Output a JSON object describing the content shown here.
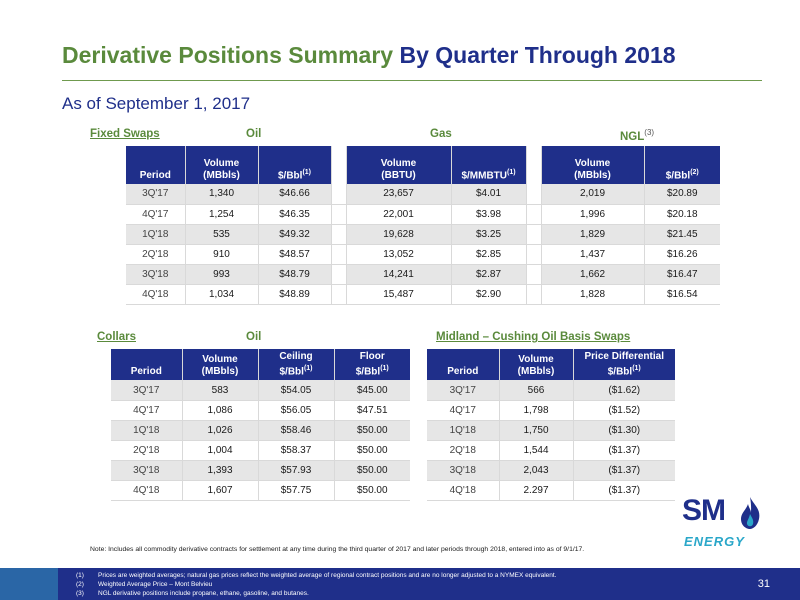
{
  "title": {
    "part1": "Derivative Positions Summary",
    "part2": " By Quarter Through 2018"
  },
  "subtitle": "As of September 1, 2017",
  "fixed_swaps": {
    "label": "Fixed Swaps",
    "oil_label": "Oil",
    "gas_label": "Gas",
    "ngl_label": "NGL",
    "ngl_sup": "(3)",
    "headers": {
      "period": "Period",
      "oil_volume": [
        "Volume",
        "(MBbls)"
      ],
      "oil_price": "$/Bbl",
      "oil_price_sup": "(1)",
      "gas_volume": [
        "Volume",
        "(BBTU)"
      ],
      "gas_price": "$/MMBTU",
      "gas_price_sup": "(1)",
      "ngl_volume": [
        "Volume",
        "(MBbls)"
      ],
      "ngl_price": "$/Bbl",
      "ngl_price_sup": "(2)"
    },
    "rows": [
      [
        "3Q'17",
        "1,340",
        "$46.66",
        "23,657",
        "$4.01",
        "2,019",
        "$20.89"
      ],
      [
        "4Q'17",
        "1,254",
        "$46.35",
        "22,001",
        "$3.98",
        "1,996",
        "$20.18"
      ],
      [
        "1Q'18",
        "535",
        "$49.32",
        "19,628",
        "$3.25",
        "1,829",
        "$21.45"
      ],
      [
        "2Q'18",
        "910",
        "$48.57",
        "13,052",
        "$2.85",
        "1,437",
        "$16.26"
      ],
      [
        "3Q'18",
        "993",
        "$48.79",
        "14,241",
        "$2.87",
        "1,662",
        "$16.47"
      ],
      [
        "4Q'18",
        "1,034",
        "$48.89",
        "15,487",
        "$2.90",
        "1,828",
        "$16.54"
      ]
    ]
  },
  "collars": {
    "label": "Collars",
    "oil_label": "Oil",
    "headers": {
      "period": "Period",
      "volume": [
        "Volume",
        "(MBbls)"
      ],
      "ceiling": [
        "Ceiling",
        "$/Bbl"
      ],
      "ceiling_sup": "(1)",
      "floor": [
        "Floor",
        "$/Bbl"
      ],
      "floor_sup": "(1)"
    },
    "rows": [
      [
        "3Q'17",
        "583",
        "$54.05",
        "$45.00"
      ],
      [
        "4Q'17",
        "1,086",
        "$56.05",
        "$47.51"
      ],
      [
        "1Q'18",
        "1,026",
        "$58.46",
        "$50.00"
      ],
      [
        "2Q'18",
        "1,004",
        "$58.37",
        "$50.00"
      ],
      [
        "3Q'18",
        "1,393",
        "$57.93",
        "$50.00"
      ],
      [
        "4Q'18",
        "1,607",
        "$57.75",
        "$50.00"
      ]
    ]
  },
  "basis_swaps": {
    "label": "Midland – Cushing Oil Basis Swaps",
    "headers": {
      "period": "Period",
      "volume": [
        "Volume",
        "(MBbls)"
      ],
      "diff": [
        "Price Differential",
        "$/Bbl"
      ],
      "diff_sup": "(1)"
    },
    "rows": [
      [
        "3Q'17",
        "566",
        "($1.62)"
      ],
      [
        "4Q'17",
        "1,798",
        "($1.52)"
      ],
      [
        "1Q'18",
        "1,750",
        "($1.30)"
      ],
      [
        "2Q'18",
        "1,544",
        "($1.37)"
      ],
      [
        "3Q'18",
        "2,043",
        "($1.37)"
      ],
      [
        "4Q'18",
        "2.297",
        "($1.37)"
      ]
    ]
  },
  "note": "Note: Includes all commodity derivative contracts for settlement at any time during the third quarter of 2017 and later periods through 2018, entered into as of 9/1/17.",
  "logo": {
    "sm": "SM",
    "energy": "ENERGY"
  },
  "footnotes": [
    {
      "num": "(1)",
      "text": "Prices are weighted averages; natural gas prices reflect the weighted average of regional contract positions and are no longer adjusted to a NYMEX equivalent."
    },
    {
      "num": "(2)",
      "text": "Weighted Average Price – Mont Belvieu"
    },
    {
      "num": "(3)",
      "text": "NGL derivative positions include propane, ethane, gasoline, and butanes."
    }
  ],
  "page_number": "31",
  "colors": {
    "green": "#5a8a3c",
    "navy": "#1f2f8a",
    "cyan": "#2aa7c9",
    "row_shade": "#e6e6e6"
  }
}
